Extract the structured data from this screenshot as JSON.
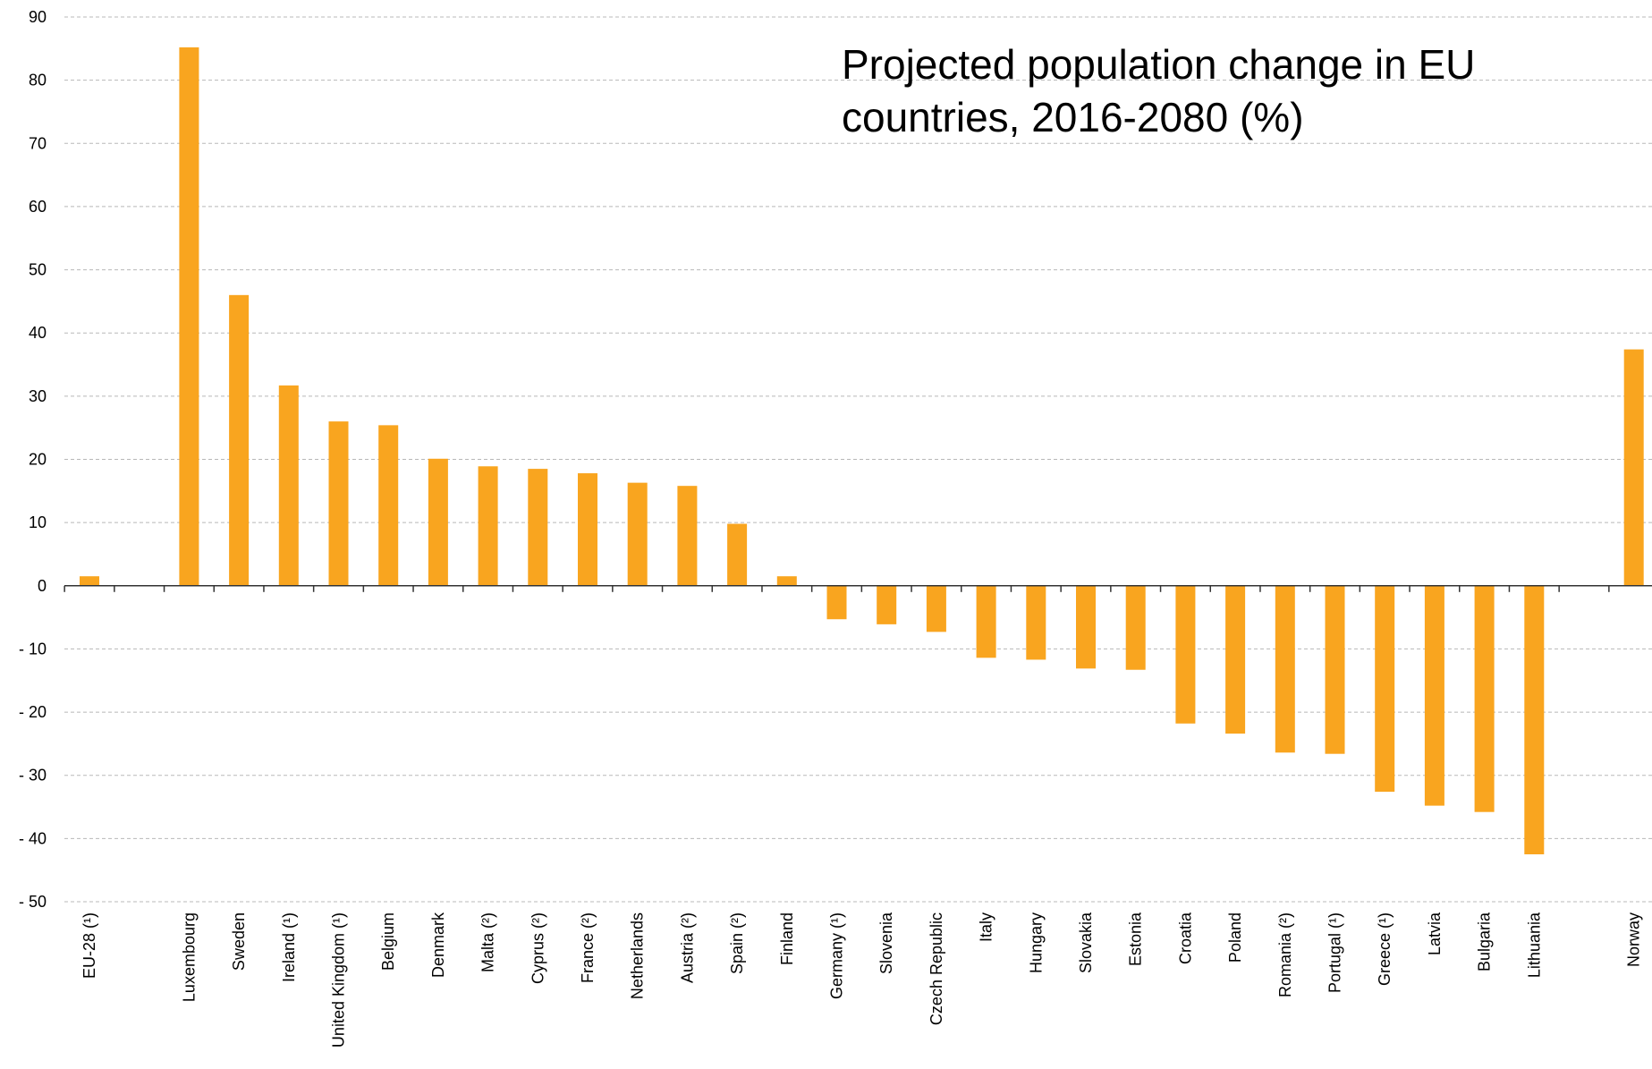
{
  "chart_data": {
    "type": "bar",
    "title_lines": [
      "Projected population change in EU",
      "countries, 2016-2080 (%)"
    ],
    "xlabel": "",
    "ylabel": "",
    "ylim": [
      -50,
      90
    ],
    "yticks": [
      90,
      80,
      70,
      60,
      50,
      40,
      30,
      20,
      10,
      0,
      -10,
      -20,
      -30,
      -40,
      -50
    ],
    "ytick_labels": [
      "90",
      "80",
      "70",
      "60",
      "50",
      "40",
      "30",
      "20",
      "10",
      "0",
      "- 10",
      "- 20",
      "- 30",
      "- 40",
      "- 50"
    ],
    "grid": true,
    "bar_color": "#F9A51F",
    "categories": [
      "EU-28 (¹)",
      "",
      "Luxembourg",
      "Sweden",
      "Ireland (¹)",
      "United Kingdom (¹)",
      "Belgium",
      "Denmark",
      "Malta (²)",
      "Cyprus (²)",
      "France (²)",
      "Netherlands",
      "Austria (²)",
      "Spain (²)",
      "Finland",
      "Germany (¹)",
      "Slovenia",
      "Czech Republic",
      "Italy",
      "Hungary",
      "Slovakia",
      "Estonia",
      "Croatia",
      "Poland",
      "Romania (²)",
      "Portugal (¹)",
      "Greece (¹)",
      "Latvia",
      "Bulgaria",
      "Lithuania",
      "",
      "Norway"
    ],
    "values": [
      1.5,
      null,
      85.2,
      46.0,
      31.7,
      26.0,
      25.4,
      20.1,
      18.9,
      18.5,
      17.8,
      16.3,
      15.8,
      9.8,
      1.5,
      -5.3,
      -6.1,
      -7.3,
      -11.4,
      -11.7,
      -13.1,
      -13.3,
      -21.8,
      -23.4,
      -26.4,
      -26.6,
      -32.6,
      -34.8,
      -35.8,
      -42.5,
      null,
      37.4
    ]
  }
}
